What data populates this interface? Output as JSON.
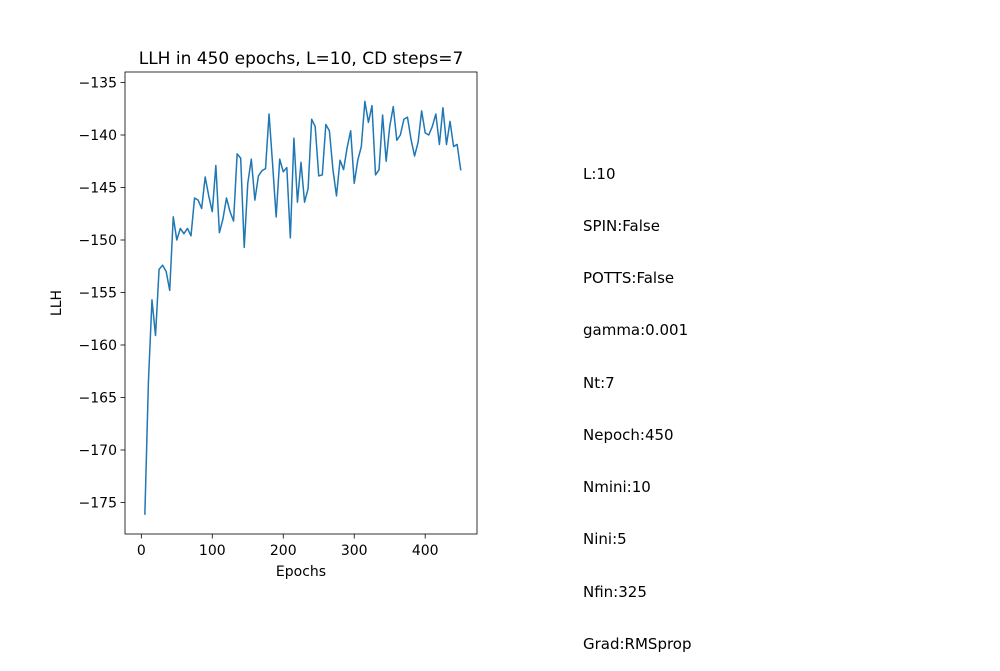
{
  "chart_data": {
    "type": "line",
    "title": "LLH in 450 epochs, L=10, CD steps=7",
    "xlabel": "Epochs",
    "ylabel": "LLH",
    "xlim": [
      -23,
      473
    ],
    "ylim": [
      -178,
      -134
    ],
    "xticks": [
      0,
      100,
      200,
      300,
      400
    ],
    "yticks": [
      -175,
      -170,
      -165,
      -160,
      -155,
      -150,
      -145,
      -140,
      -135
    ],
    "xtick_labels": [
      "0",
      "100",
      "200",
      "300",
      "400"
    ],
    "ytick_labels": [
      "−175",
      "−170",
      "−165",
      "−160",
      "−155",
      "−150",
      "−145",
      "−140",
      "−135"
    ],
    "grid": false,
    "line_color": "#1f77b4",
    "series": [
      {
        "x": [
          5,
          10,
          15,
          20,
          25,
          30,
          35,
          40,
          45,
          50,
          55,
          60,
          65,
          70,
          75,
          80,
          85,
          90,
          95,
          100,
          105,
          110,
          115,
          120,
          125,
          130,
          135,
          140,
          145,
          150,
          155,
          160,
          165,
          170,
          175,
          180,
          185,
          190,
          195,
          200,
          205,
          210,
          215,
          220,
          225,
          230,
          235,
          240,
          245,
          250,
          255,
          260,
          265,
          270,
          275,
          280,
          285,
          290,
          295,
          300,
          305,
          310,
          315,
          320,
          325,
          330,
          335,
          340,
          345,
          350,
          355,
          360,
          365,
          370,
          375,
          380,
          385,
          390,
          395,
          400,
          405,
          410,
          415,
          420,
          425,
          430,
          435,
          440,
          445,
          450
        ],
        "y": [
          -176.1,
          -163.5,
          -155.7,
          -159.1,
          -152.8,
          -152.4,
          -153.0,
          -154.8,
          -147.8,
          -150.0,
          -148.9,
          -149.4,
          -148.9,
          -149.6,
          -146.0,
          -146.2,
          -147.0,
          -144.0,
          -145.8,
          -147.3,
          -142.9,
          -149.3,
          -148.0,
          -146.0,
          -147.3,
          -148.2,
          -141.8,
          -142.2,
          -150.7,
          -144.6,
          -142.3,
          -146.2,
          -143.9,
          -143.4,
          -143.2,
          -138.0,
          -142.8,
          -147.8,
          -142.3,
          -143.5,
          -143.1,
          -149.8,
          -140.3,
          -146.4,
          -142.6,
          -146.4,
          -145.1,
          -138.5,
          -139.2,
          -143.9,
          -143.8,
          -139.0,
          -139.6,
          -143.3,
          -145.8,
          -142.4,
          -143.3,
          -141.2,
          -139.6,
          -144.6,
          -142.4,
          -141.1,
          -136.8,
          -138.8,
          -137.2,
          -143.8,
          -143.3,
          -138.1,
          -142.5,
          -139.2,
          -137.3,
          -140.5,
          -140.0,
          -138.5,
          -138.3,
          -140.4,
          -142.0,
          -140.7,
          -137.7,
          -139.8,
          -140.0,
          -139.2,
          -138.0,
          -140.9,
          -137.4,
          -140.9,
          -138.7,
          -141.1,
          -140.9,
          -143.3
        ]
      }
    ]
  },
  "info_panel": {
    "lines": [
      "L:10",
      "SPIN:False",
      "POTTS:False",
      "gamma:0.001",
      "Nt:7",
      "Nepoch:450",
      "Nmini:10",
      "Nini:5",
      "Nfin:325",
      "Grad:RMSprop"
    ]
  }
}
